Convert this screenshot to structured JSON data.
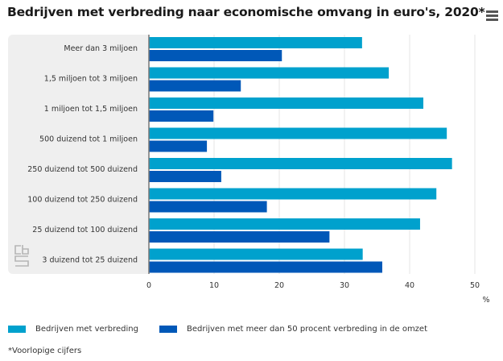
{
  "header": {
    "title": "Bedrijven met verbreding naar economische omvang in euro's, 2020*",
    "menu_icon": "hamburger-menu-icon"
  },
  "chart_data": {
    "type": "bar",
    "orientation": "horizontal",
    "title": "Bedrijven met verbreding naar economische omvang in euro's, 2020*",
    "categories": [
      "Meer dan 3 miljoen",
      "1,5 miljoen tot 3 miljoen",
      "1 miljoen tot 1,5 miljoen",
      "500 duizend tot 1 miljoen",
      "250 duizend tot 500 duizend",
      "100 duizend tot 250 duizend",
      "25 duizend tot 100 duizend",
      "3 duizend tot 25 duizend"
    ],
    "series": [
      {
        "name": "Bedrijven met verbreding",
        "color": "#00a1cd",
        "values": [
          32.7,
          36.8,
          42.1,
          45.7,
          46.5,
          44.1,
          41.6,
          32.8
        ]
      },
      {
        "name": "Bedrijven met meer dan 50 procent verbreding in de omzet",
        "color": "#0058b8",
        "values": [
          20.4,
          14.1,
          9.9,
          8.9,
          11.1,
          18.1,
          27.7,
          35.8
        ]
      }
    ],
    "xlabel": "%",
    "ylabel": "",
    "xlim": [
      0,
      53
    ],
    "xticks": [
      0,
      10,
      20,
      30,
      40,
      50
    ],
    "grid": true,
    "legend_position": "bottom-left",
    "footnote": "*Voorlopige cijfers"
  },
  "legend": {
    "items": [
      {
        "label": "Bedrijven met verbreding",
        "color": "#00a1cd"
      },
      {
        "label": "Bedrijven met meer dan 50 procent verbreding in de omzet",
        "color": "#0058b8"
      }
    ]
  },
  "footer": {
    "footnote": "*Voorlopige cijfers",
    "logo_icon": "cbs-logo-icon"
  }
}
